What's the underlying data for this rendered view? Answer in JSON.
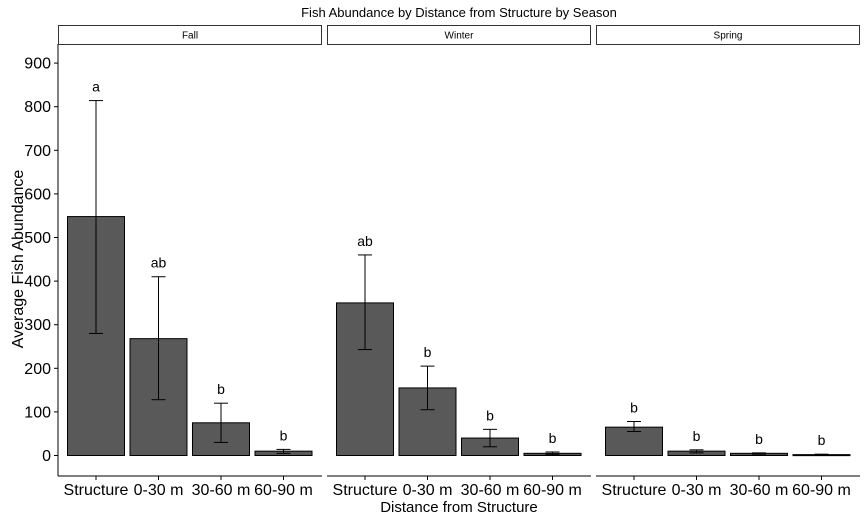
{
  "chart_data": {
    "type": "bar",
    "title": "Fish Abundance by Distance from Structure by Season",
    "xlabel": "Distance from Structure",
    "ylabel": "Average Fish Abundance",
    "ylim": [
      0,
      950
    ],
    "yticks": [
      0,
      100,
      200,
      300,
      400,
      500,
      600,
      700,
      800,
      900
    ],
    "categories": [
      "Structure",
      "0-30 m",
      "30-60 m",
      "60-90 m"
    ],
    "grid": false,
    "bar_color": "#595959",
    "panels": [
      {
        "name": "Fall",
        "values": [
          548,
          268,
          75,
          10
        ],
        "error_low": [
          280,
          128,
          30,
          5
        ],
        "error_high": [
          814,
          410,
          120,
          14
        ],
        "labels": [
          "a",
          "ab",
          "b",
          "b"
        ]
      },
      {
        "name": "Winter",
        "values": [
          350,
          155,
          40,
          5
        ],
        "error_low": [
          243,
          105,
          20,
          2
        ],
        "error_high": [
          460,
          205,
          60,
          8
        ],
        "labels": [
          "ab",
          "b",
          "b",
          "b"
        ]
      },
      {
        "name": "Spring",
        "values": [
          65,
          10,
          5,
          2
        ],
        "error_low": [
          55,
          6,
          3,
          1
        ],
        "error_high": [
          78,
          13,
          6,
          3
        ],
        "labels": [
          "b",
          "b",
          "b",
          "b"
        ]
      }
    ]
  }
}
